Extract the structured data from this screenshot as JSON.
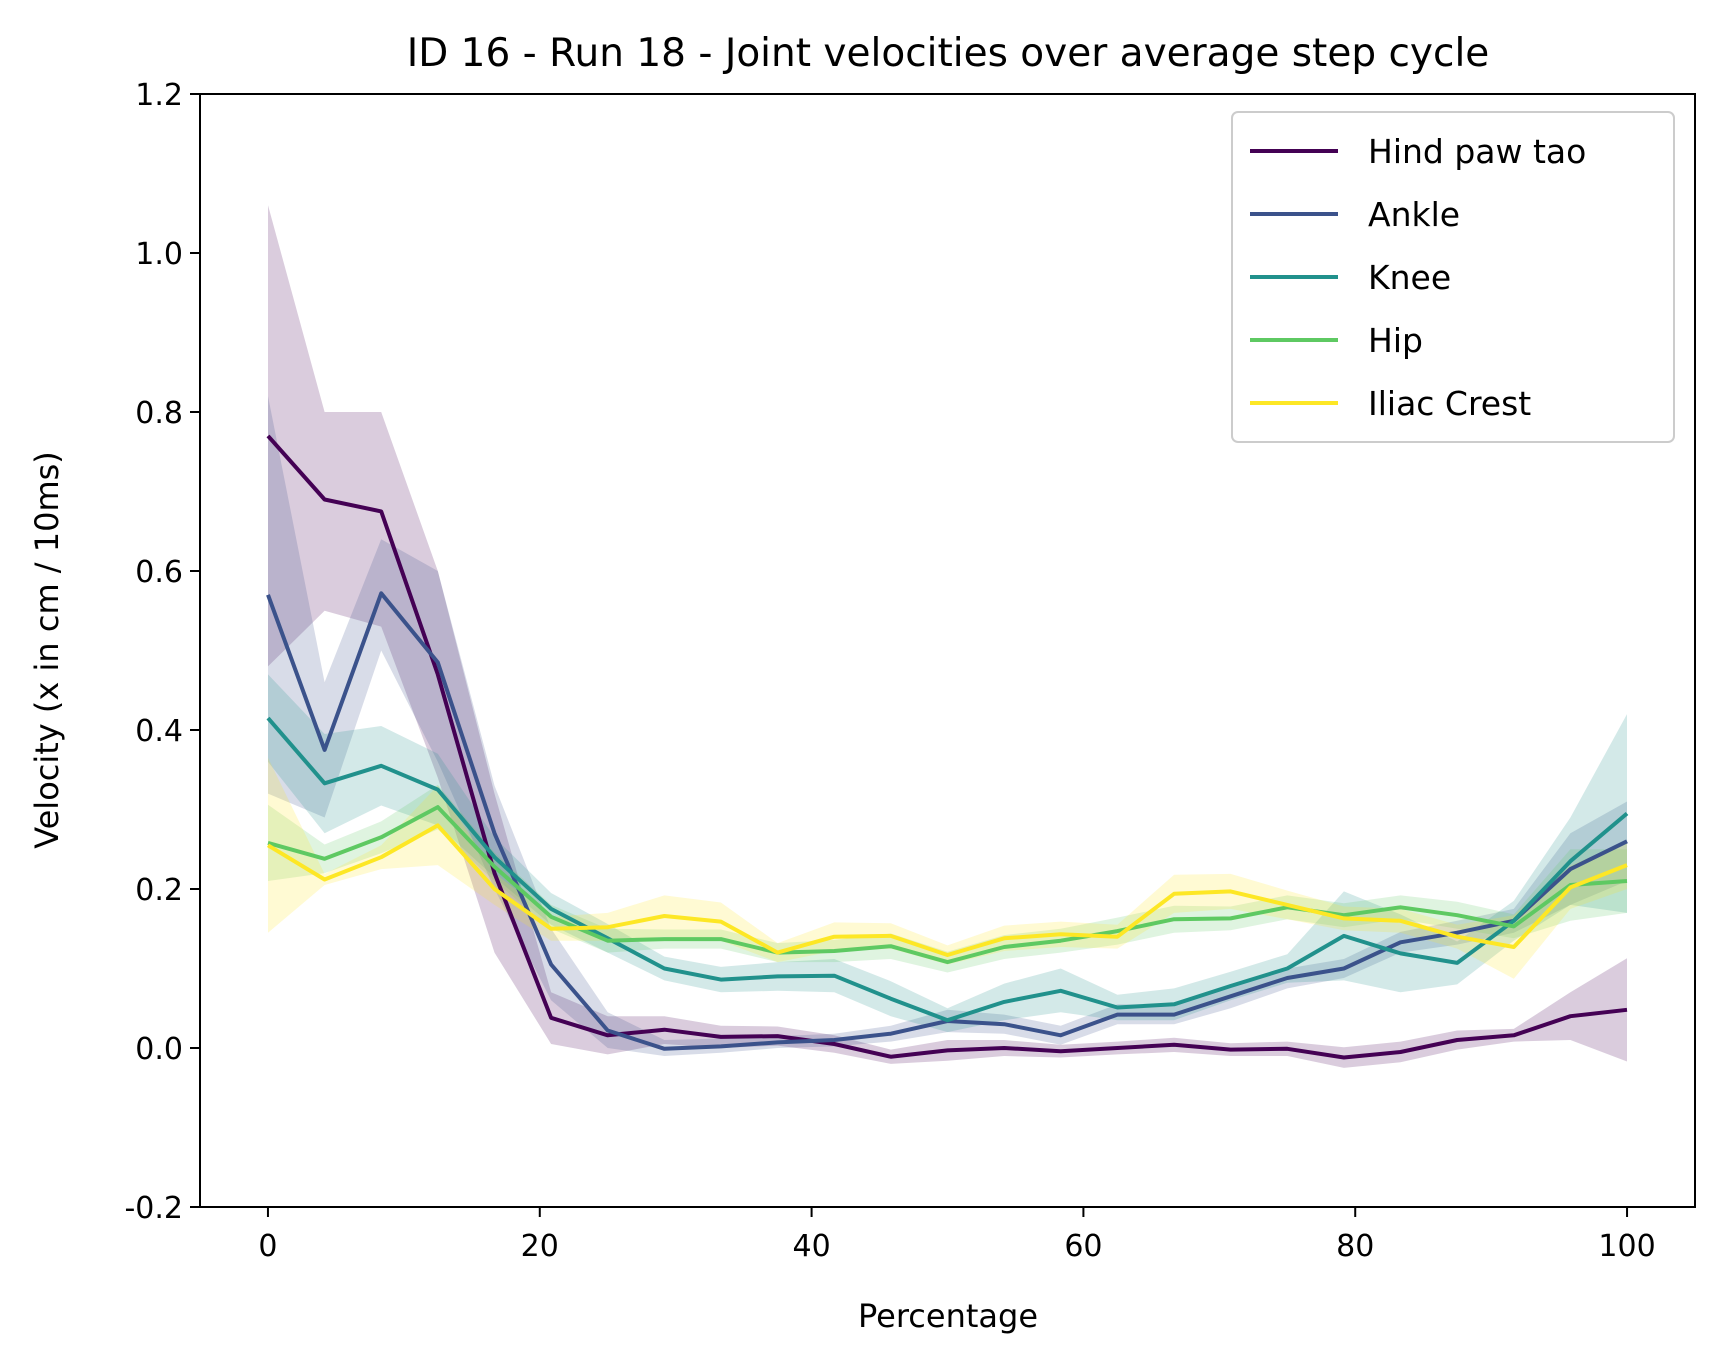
{
  "chart_data": {
    "type": "line",
    "title": "ID 16 - Run 18 - Joint velocities over average step cycle",
    "xlabel": "Percentage",
    "ylabel": "Velocity (x in cm / 10ms)",
    "xlim": [
      -5,
      105
    ],
    "ylim": [
      -0.2,
      1.2
    ],
    "xticks": [
      0,
      20,
      40,
      60,
      80,
      100
    ],
    "xtick_labels": [
      "0",
      "20",
      "40",
      "60",
      "80",
      "100"
    ],
    "yticks": [
      -0.2,
      0.0,
      0.2,
      0.4,
      0.6,
      0.8,
      1.0,
      1.2
    ],
    "ytick_labels": [
      "-0.2",
      "0.0",
      "0.2",
      "0.4",
      "0.6",
      "0.8",
      "1.0",
      "1.2"
    ],
    "grid": false,
    "legend_position": "top-right",
    "x": [
      0,
      4.17,
      8.33,
      12.5,
      16.67,
      20.83,
      25,
      29.17,
      33.33,
      37.5,
      41.67,
      45.83,
      50,
      54.17,
      58.33,
      62.5,
      66.67,
      70.83,
      75,
      79.17,
      83.33,
      87.5,
      91.67,
      95.83,
      100
    ],
    "series": [
      {
        "name": "Hind paw tao",
        "color": "#440154",
        "values": [
          0.77,
          0.69,
          0.675,
          0.47,
          0.22,
          0.038,
          0.016,
          0.023,
          0.014,
          0.015,
          0.005,
          -0.011,
          -0.003,
          0.0,
          -0.004,
          0.0,
          0.004,
          -0.002,
          -0.001,
          -0.012,
          -0.005,
          0.01,
          0.016,
          0.04,
          0.048
        ],
        "lower": [
          0.48,
          0.55,
          0.53,
          0.34,
          0.12,
          0.005,
          -0.008,
          0.005,
          0.0,
          0.003,
          -0.006,
          -0.02,
          -0.016,
          -0.01,
          -0.012,
          -0.008,
          -0.005,
          -0.01,
          -0.01,
          -0.025,
          -0.018,
          -0.002,
          0.008,
          0.01,
          -0.017
        ],
        "upper": [
          1.06,
          0.8,
          0.8,
          0.6,
          0.32,
          0.07,
          0.04,
          0.04,
          0.028,
          0.027,
          0.016,
          -0.002,
          0.01,
          0.01,
          0.004,
          0.008,
          0.013,
          0.006,
          0.008,
          0.001,
          0.008,
          0.022,
          0.024,
          0.07,
          0.113
        ]
      },
      {
        "name": "Ankle",
        "color": "#3b528b",
        "values": [
          0.57,
          0.375,
          0.572,
          0.485,
          0.27,
          0.105,
          0.022,
          -0.001,
          0.002,
          0.007,
          0.01,
          0.018,
          0.034,
          0.03,
          0.016,
          0.042,
          0.042,
          0.065,
          0.088,
          0.1,
          0.133,
          0.145,
          0.16,
          0.225,
          0.26
        ],
        "lower": [
          0.32,
          0.29,
          0.5,
          0.36,
          0.2,
          0.06,
          0.0,
          -0.01,
          -0.006,
          0.0,
          0.002,
          0.008,
          0.02,
          0.018,
          0.004,
          0.03,
          0.03,
          0.05,
          0.075,
          0.088,
          0.12,
          0.13,
          0.145,
          0.18,
          0.21
        ],
        "upper": [
          0.82,
          0.46,
          0.64,
          0.6,
          0.33,
          0.15,
          0.045,
          0.01,
          0.012,
          0.015,
          0.018,
          0.028,
          0.048,
          0.042,
          0.028,
          0.055,
          0.055,
          0.08,
          0.1,
          0.112,
          0.146,
          0.16,
          0.175,
          0.27,
          0.31
        ]
      },
      {
        "name": "Knee",
        "color": "#21918c",
        "values": [
          0.415,
          0.333,
          0.355,
          0.325,
          0.24,
          0.175,
          0.138,
          0.1,
          0.086,
          0.09,
          0.091,
          0.062,
          0.035,
          0.058,
          0.072,
          0.051,
          0.055,
          0.078,
          0.1,
          0.141,
          0.119,
          0.107,
          0.16,
          0.235,
          0.295
        ],
        "lower": [
          0.36,
          0.27,
          0.305,
          0.28,
          0.215,
          0.155,
          0.12,
          0.085,
          0.07,
          0.072,
          0.07,
          0.04,
          0.02,
          0.035,
          0.045,
          0.035,
          0.035,
          0.06,
          0.082,
          0.085,
          0.07,
          0.08,
          0.135,
          0.18,
          0.17
        ],
        "upper": [
          0.47,
          0.395,
          0.405,
          0.37,
          0.265,
          0.195,
          0.156,
          0.115,
          0.102,
          0.108,
          0.112,
          0.084,
          0.05,
          0.081,
          0.1,
          0.067,
          0.075,
          0.096,
          0.118,
          0.197,
          0.168,
          0.134,
          0.185,
          0.29,
          0.42
        ]
      },
      {
        "name": "Hip",
        "color": "#5ec962",
        "values": [
          0.258,
          0.238,
          0.265,
          0.303,
          0.228,
          0.165,
          0.135,
          0.137,
          0.137,
          0.12,
          0.122,
          0.128,
          0.108,
          0.127,
          0.135,
          0.147,
          0.162,
          0.163,
          0.177,
          0.167,
          0.177,
          0.167,
          0.153,
          0.205,
          0.21
        ],
        "lower": [
          0.21,
          0.22,
          0.245,
          0.275,
          0.21,
          0.15,
          0.12,
          0.125,
          0.125,
          0.108,
          0.108,
          0.112,
          0.095,
          0.112,
          0.12,
          0.13,
          0.145,
          0.148,
          0.162,
          0.152,
          0.162,
          0.15,
          0.138,
          0.16,
          0.17
        ],
        "upper": [
          0.306,
          0.256,
          0.285,
          0.331,
          0.246,
          0.18,
          0.15,
          0.149,
          0.149,
          0.132,
          0.136,
          0.144,
          0.121,
          0.142,
          0.15,
          0.164,
          0.179,
          0.178,
          0.192,
          0.182,
          0.192,
          0.184,
          0.168,
          0.25,
          0.25
        ]
      },
      {
        "name": "Iliac Crest",
        "color": "#fde725",
        "values": [
          0.255,
          0.212,
          0.24,
          0.28,
          0.2,
          0.15,
          0.152,
          0.166,
          0.159,
          0.12,
          0.14,
          0.141,
          0.117,
          0.138,
          0.143,
          0.14,
          0.194,
          0.197,
          0.18,
          0.163,
          0.16,
          0.14,
          0.127,
          0.202,
          0.23
        ],
        "lower": [
          0.145,
          0.205,
          0.225,
          0.23,
          0.18,
          0.135,
          0.135,
          0.14,
          0.135,
          0.108,
          0.122,
          0.125,
          0.105,
          0.122,
          0.127,
          0.125,
          0.17,
          0.175,
          0.162,
          0.148,
          0.145,
          0.125,
          0.087,
          0.175,
          0.2
        ],
        "upper": [
          0.365,
          0.219,
          0.255,
          0.33,
          0.22,
          0.165,
          0.17,
          0.192,
          0.183,
          0.132,
          0.158,
          0.157,
          0.129,
          0.154,
          0.159,
          0.155,
          0.218,
          0.219,
          0.198,
          0.178,
          0.175,
          0.155,
          0.167,
          0.229,
          0.26
        ]
      }
    ]
  }
}
